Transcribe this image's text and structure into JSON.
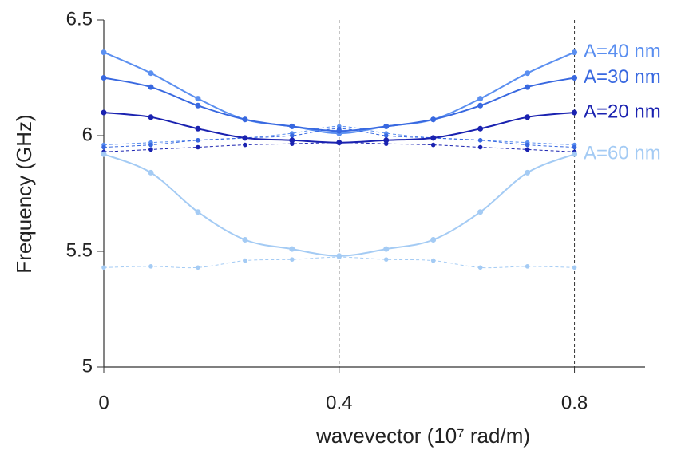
{
  "chart_data": {
    "type": "line",
    "x": [
      0,
      0.08,
      0.16,
      0.24,
      0.32,
      0.4,
      0.48,
      0.56,
      0.64,
      0.72,
      0.8
    ],
    "xlim": [
      0,
      0.92
    ],
    "xticks": [
      0,
      0.4,
      0.8
    ],
    "ylim": [
      5,
      6.5
    ],
    "yticks": [
      5,
      5.5,
      6,
      6.5
    ],
    "xlabel": "wavevector (10⁷ rad/m)",
    "ylabel": "Frequency (GHz)",
    "vlines": [
      0.4,
      0.8
    ],
    "series": [
      {
        "name": "A=40 nm",
        "color": "#5b8ff0",
        "values": [
          6.36,
          6.27,
          6.16,
          6.07,
          6.04,
          6.01,
          6.04,
          6.07,
          6.16,
          6.27,
          6.36
        ],
        "dashed_values": [
          5.96,
          5.97,
          5.98,
          5.99,
          6.01,
          6.04,
          6.01,
          5.99,
          5.98,
          5.97,
          5.96
        ]
      },
      {
        "name": "A=30 nm",
        "color": "#3868e0",
        "values": [
          6.25,
          6.21,
          6.13,
          6.07,
          6.04,
          6.02,
          6.04,
          6.07,
          6.13,
          6.21,
          6.25
        ],
        "dashed_values": [
          5.95,
          5.96,
          5.98,
          5.99,
          6.0,
          6.03,
          6.0,
          5.99,
          5.98,
          5.96,
          5.95
        ]
      },
      {
        "name": "A=20 nm",
        "color": "#1a22b0",
        "values": [
          6.1,
          6.08,
          6.03,
          5.99,
          5.98,
          5.97,
          5.98,
          5.99,
          6.03,
          6.08,
          6.1
        ],
        "dashed_values": [
          5.93,
          5.94,
          5.95,
          5.96,
          5.965,
          5.97,
          5.965,
          5.96,
          5.95,
          5.94,
          5.93
        ]
      },
      {
        "name": "A=60 nm",
        "color": "#a4cbf4",
        "values": [
          5.92,
          5.84,
          5.67,
          5.55,
          5.51,
          5.48,
          5.51,
          5.55,
          5.67,
          5.84,
          5.92
        ],
        "dashed_values": [
          5.43,
          5.435,
          5.43,
          5.46,
          5.465,
          5.475,
          5.465,
          5.46,
          5.43,
          5.435,
          5.43
        ]
      }
    ]
  }
}
